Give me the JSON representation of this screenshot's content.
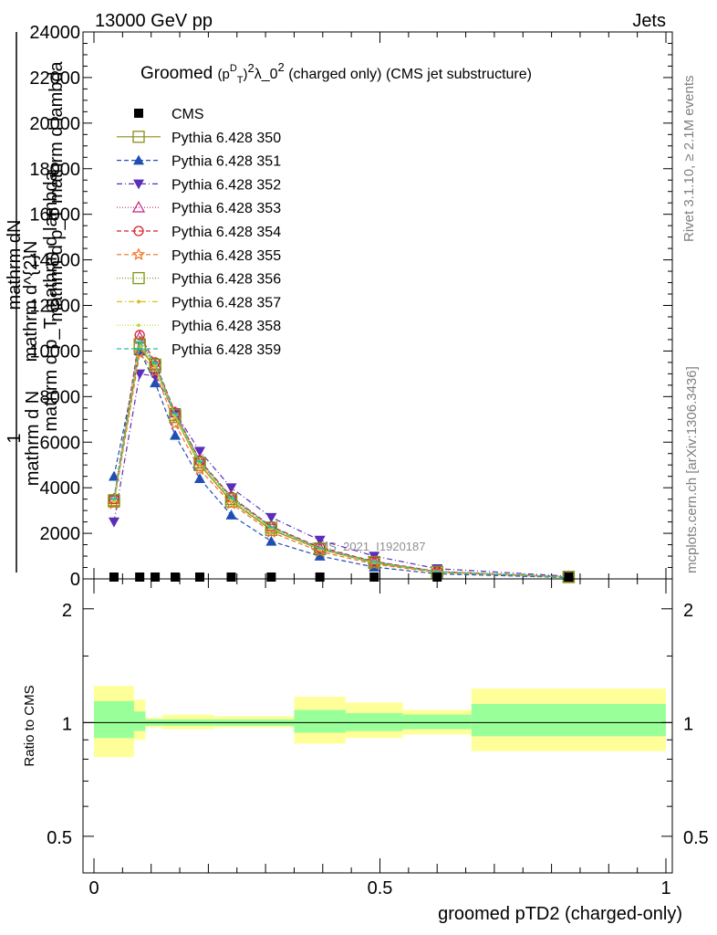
{
  "header": {
    "left": "13000 GeV pp",
    "right": "Jets"
  },
  "side": {
    "rivet": "Rivet 3.1.10, ≥ 2.1M events",
    "mcplots": "mcplots.cern.ch [arXiv:1306.3436]"
  },
  "chart_data": [
    {
      "type": "line",
      "title_main": "Groomed",
      "title_sym": "(p",
      "title_sup1": "D",
      "title_sub1": "T",
      "title_mid": ")",
      "title_sup2": "2",
      "title_lambda": "λ_0",
      "title_sup3": "2",
      "title_rest": " (charged only) (CMS jet substructure)",
      "ylabel_top": "1",
      "ylabel_mid": "mathrm d N",
      "ylabel_frac_num": "mathrm d^{2}N",
      "ylabel_frac_den": "mathrm d p_T mathrm d lambda",
      "ylabel_line1": "mathrm dN",
      "ylabel_line2": "mathrm d p_T mathrm d lambda",
      "ylim": [
        0,
        24000
      ],
      "xlim": [
        0,
        1
      ],
      "yticks": [
        0,
        2000,
        4000,
        6000,
        8000,
        10000,
        12000,
        14000,
        16000,
        18000,
        20000,
        22000,
        24000
      ],
      "yticklabels": [
        "0",
        "2000",
        "4000",
        "6000",
        "8000",
        "10000",
        "12000",
        "14000",
        "16000",
        "18000",
        "20000",
        "22000",
        "24000"
      ],
      "watermark": "CMS_2021_I1920187",
      "x": [
        0.035,
        0.08,
        0.107,
        0.142,
        0.185,
        0.24,
        0.31,
        0.395,
        0.49,
        0.6,
        0.83
      ],
      "series": [
        {
          "name": "CMS",
          "color": "#000000",
          "marker": "square-filled",
          "dash": "",
          "values": [
            0,
            0,
            0,
            0,
            0,
            0,
            0,
            0,
            0,
            0,
            0
          ]
        },
        {
          "name": "Pythia 6.428 350",
          "color": "#8c8c1a",
          "marker": "square-open",
          "dash": "",
          "values": [
            3400,
            10100,
            9300,
            7100,
            5000,
            3400,
            2150,
            1300,
            700,
            300,
            80
          ]
        },
        {
          "name": "Pythia 6.428 351",
          "color": "#1f4fb4",
          "marker": "triangle-up-filled",
          "dash": "5,3",
          "values": [
            4500,
            10000,
            8600,
            6300,
            4400,
            2800,
            1650,
            1000,
            520,
            220,
            60
          ]
        },
        {
          "name": "Pythia 6.428 352",
          "color": "#5b2db8",
          "marker": "triangle-down-filled",
          "dash": "6,3,1,3",
          "values": [
            2500,
            9000,
            8900,
            7300,
            5600,
            4000,
            2700,
            1700,
            1000,
            450,
            120
          ]
        },
        {
          "name": "Pythia 6.428 353",
          "color": "#c0267e",
          "marker": "triangle-up-open",
          "dash": "1,2",
          "values": [
            3500,
            10600,
            9400,
            7300,
            5200,
            3600,
            2300,
            1350,
            760,
            320,
            85
          ]
        },
        {
          "name": "Pythia 6.428 354",
          "color": "#d8202a",
          "marker": "circle-open",
          "dash": "5,3",
          "values": [
            3500,
            10700,
            9500,
            7300,
            5200,
            3600,
            2300,
            1380,
            770,
            330,
            90
          ]
        },
        {
          "name": "Pythia 6.428 355",
          "color": "#f07020",
          "marker": "star-open",
          "dash": "5,3",
          "values": [
            3300,
            9900,
            9100,
            6800,
            4800,
            3300,
            2050,
            1200,
            650,
            280,
            75
          ]
        },
        {
          "name": "Pythia 6.428 356",
          "color": "#7a9a10",
          "marker": "square-open",
          "dash": "1,2",
          "values": [
            3450,
            10300,
            9400,
            7200,
            5100,
            3500,
            2250,
            1330,
            740,
            310,
            85
          ]
        },
        {
          "name": "Pythia 6.428 357",
          "color": "#d8c020",
          "marker": "dash-dot",
          "dash": "6,3,1,3",
          "values": [
            3400,
            10200,
            9300,
            7150,
            5050,
            3450,
            2200,
            1310,
            720,
            305,
            82
          ]
        },
        {
          "name": "Pythia 6.428 358",
          "color": "#b8d820",
          "marker": "dot",
          "dash": "1,2",
          "values": [
            3450,
            10250,
            9350,
            7150,
            5080,
            3480,
            2220,
            1320,
            730,
            308,
            83
          ]
        },
        {
          "name": "Pythia 6.428 359",
          "color": "#20c0a0",
          "marker": "dash-line",
          "dash": "5,3",
          "values": [
            3500,
            10400,
            9450,
            7250,
            5150,
            3550,
            2260,
            1340,
            745,
            312,
            84
          ]
        }
      ]
    },
    {
      "type": "area",
      "ylabel": "Ratio to CMS",
      "xlabel": "groomed pTD2 (charged-only)",
      "xticklabels": [
        "0",
        "0.5",
        "1"
      ],
      "yticklabels_left": [
        "0.5",
        "1",
        "2"
      ],
      "yticklabels_right": [
        "0.5",
        "1",
        "2"
      ],
      "ylog": true,
      "ylim": [
        0.4,
        2.4
      ],
      "xlim": [
        0,
        1
      ],
      "bands": [
        {
          "x0": 0.0,
          "x1": 0.07,
          "inner": [
            0.91,
            1.14
          ],
          "outer": [
            0.81,
            1.25
          ]
        },
        {
          "x0": 0.07,
          "x1": 0.09,
          "inner": [
            0.95,
            1.07
          ],
          "outer": [
            0.9,
            1.15
          ]
        },
        {
          "x0": 0.09,
          "x1": 0.12,
          "inner": [
            0.98,
            1.02
          ],
          "outer": [
            0.97,
            1.03
          ]
        },
        {
          "x0": 0.12,
          "x1": 0.21,
          "inner": [
            0.98,
            1.02
          ],
          "outer": [
            0.96,
            1.05
          ]
        },
        {
          "x0": 0.21,
          "x1": 0.35,
          "inner": [
            0.98,
            1.02
          ],
          "outer": [
            0.97,
            1.04
          ]
        },
        {
          "x0": 0.35,
          "x1": 0.44,
          "inner": [
            0.94,
            1.08
          ],
          "outer": [
            0.88,
            1.17
          ]
        },
        {
          "x0": 0.44,
          "x1": 0.54,
          "inner": [
            0.95,
            1.06
          ],
          "outer": [
            0.91,
            1.13
          ]
        },
        {
          "x0": 0.54,
          "x1": 0.66,
          "inner": [
            0.96,
            1.05
          ],
          "outer": [
            0.93,
            1.08
          ]
        },
        {
          "x0": 0.66,
          "x1": 1.0,
          "inner": [
            0.92,
            1.12
          ],
          "outer": [
            0.84,
            1.23
          ]
        }
      ],
      "inner_color": "#99ff99",
      "outer_color": "#ffff99"
    }
  ]
}
